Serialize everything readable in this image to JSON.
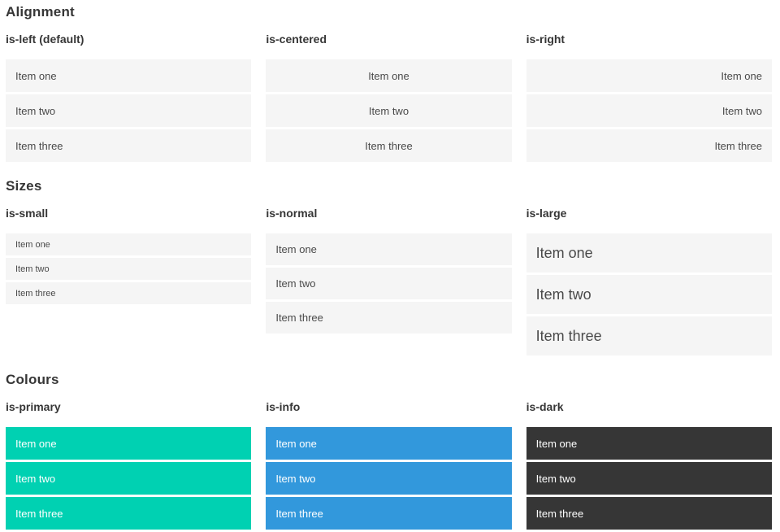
{
  "colors": {
    "primary": "#00d1b2",
    "info": "#3298dc",
    "dark": "#363636",
    "item_bg": "#f5f5f5",
    "item_text": "#4a4a4a",
    "item_text_on_color": "#ffffff",
    "heading_text": "#363636"
  },
  "sections": [
    {
      "title": "Alignment",
      "columns": [
        {
          "heading": "is-left (default)",
          "variant": "left",
          "items": [
            "Item one",
            "Item two",
            "Item three"
          ]
        },
        {
          "heading": "is-centered",
          "variant": "centered",
          "items": [
            "Item one",
            "Item two",
            "Item three"
          ]
        },
        {
          "heading": "is-right",
          "variant": "right",
          "items": [
            "Item one",
            "Item two",
            "Item three"
          ]
        }
      ]
    },
    {
      "title": "Sizes",
      "columns": [
        {
          "heading": "is-small",
          "variant": "small",
          "items": [
            "Item one",
            "Item two",
            "Item three"
          ]
        },
        {
          "heading": "is-normal",
          "variant": "normal",
          "items": [
            "Item one",
            "Item two",
            "Item three"
          ]
        },
        {
          "heading": "is-large",
          "variant": "large",
          "items": [
            "Item one",
            "Item two",
            "Item three"
          ]
        }
      ]
    },
    {
      "title": "Colours",
      "columns": [
        {
          "heading": "is-primary",
          "variant": "primary",
          "items": [
            "Item one",
            "Item two",
            "Item three"
          ]
        },
        {
          "heading": "is-info",
          "variant": "info",
          "items": [
            "Item one",
            "Item two",
            "Item three"
          ]
        },
        {
          "heading": "is-dark",
          "variant": "dark",
          "items": [
            "Item one",
            "Item two",
            "Item three"
          ]
        }
      ]
    }
  ]
}
